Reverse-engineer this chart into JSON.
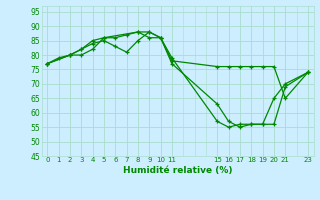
{
  "xlabel": "Humidité relative (%)",
  "background_color": "#cceeff",
  "grid_color": "#aaddcc",
  "line_color": "#008800",
  "xlim": [
    -0.5,
    23.5
  ],
  "ylim": [
    45,
    97
  ],
  "xtick_vals": [
    0,
    1,
    2,
    3,
    4,
    5,
    6,
    7,
    8,
    9,
    10,
    11,
    15,
    16,
    17,
    18,
    19,
    20,
    21,
    23
  ],
  "xtick_labels": [
    "0",
    "1",
    "2",
    "3",
    "4",
    "5",
    "6",
    "7",
    "8",
    "9",
    "10",
    "11",
    "15",
    "16",
    "17",
    "18",
    "19",
    "20",
    "21",
    "23"
  ],
  "ytick_vals": [
    45,
    50,
    55,
    60,
    65,
    70,
    75,
    80,
    85,
    90,
    95
  ],
  "lines": [
    {
      "x": [
        0,
        1,
        2,
        3,
        4,
        5,
        6,
        7,
        8,
        9,
        10,
        11,
        15,
        16,
        17,
        18,
        19,
        20,
        21,
        23
      ],
      "y": [
        77,
        79,
        80,
        82,
        85,
        86,
        86,
        87,
        88,
        88,
        86,
        78,
        76,
        76,
        76,
        76,
        76,
        76,
        65,
        74
      ]
    },
    {
      "x": [
        0,
        2,
        3,
        4,
        5,
        6,
        7,
        8,
        9,
        10,
        11,
        15,
        16,
        17,
        18,
        19,
        20,
        21,
        23
      ],
      "y": [
        77,
        80,
        82,
        84,
        85,
        83,
        81,
        85,
        88,
        86,
        77,
        63,
        57,
        55,
        56,
        56,
        56,
        69,
        74
      ]
    },
    {
      "x": [
        0,
        2,
        3,
        4,
        5,
        8,
        9,
        10,
        11,
        15,
        16,
        17,
        18,
        19,
        20,
        21,
        23
      ],
      "y": [
        77,
        80,
        80,
        82,
        86,
        88,
        86,
        86,
        79,
        57,
        55,
        56,
        56,
        56,
        65,
        70,
        74
      ]
    }
  ]
}
